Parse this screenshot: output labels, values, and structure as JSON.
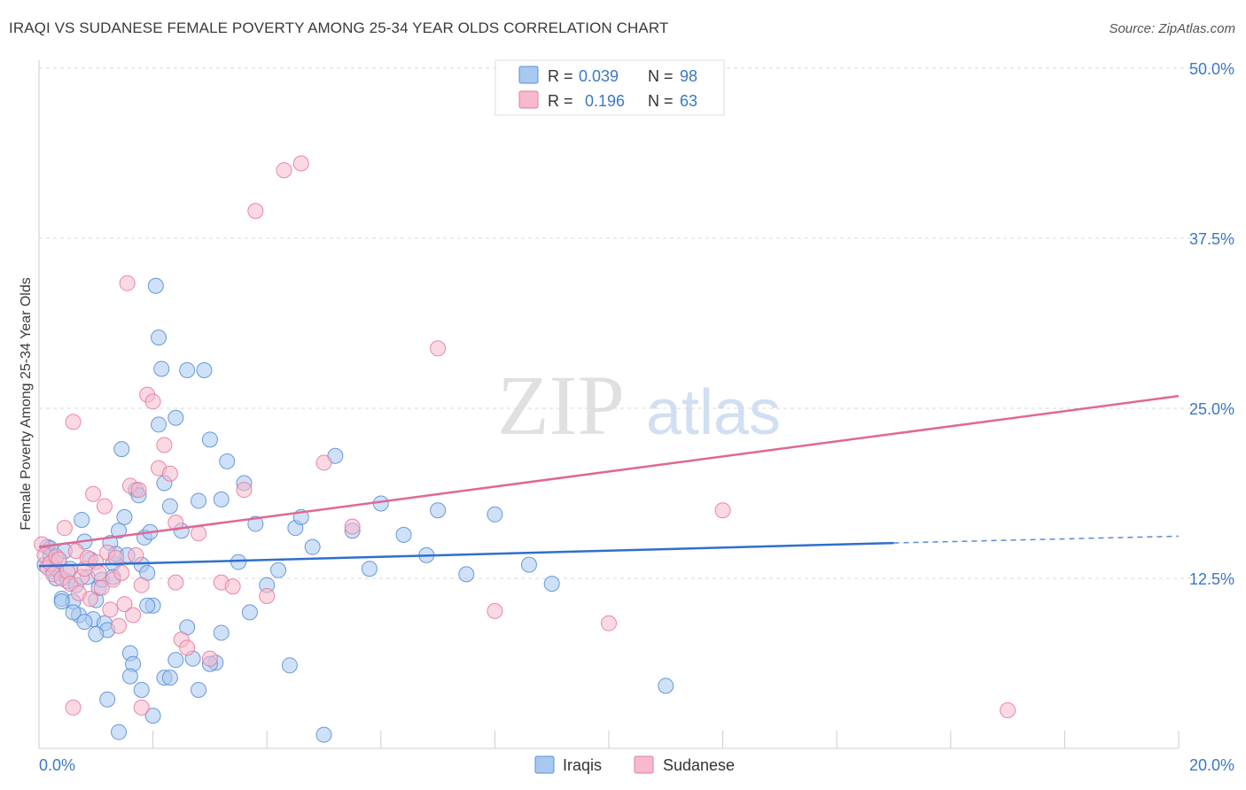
{
  "title": "IRAQI VS SUDANESE FEMALE POVERTY AMONG 25-34 YEAR OLDS CORRELATION CHART",
  "source": "Source: ZipAtlas.com",
  "watermark": {
    "zip": "ZIP",
    "atlas": "atlas"
  },
  "colors": {
    "iraqis_fill": "#a8c8f0",
    "iraqis_stroke": "#5a8fd8",
    "iraqis_line": "#2f6fcc",
    "sudanese_fill": "#f8b9cc",
    "sudanese_stroke": "#e87a9e",
    "sudanese_line": "#e06890",
    "axis_label": "#3a78c8",
    "grid": "#d8d8d8"
  },
  "legend": {
    "rows": [
      {
        "r_label": "R =",
        "r_value": "0.039",
        "n_label": "N =",
        "n_value": "98"
      },
      {
        "r_label": "R =",
        "r_value": "0.196",
        "n_label": "N =",
        "n_value": "63"
      }
    ]
  },
  "bottom_legend": [
    {
      "label": "Iraqis"
    },
    {
      "label": "Sudanese"
    }
  ],
  "chart_data": {
    "type": "scatter",
    "title": "IRAQI VS SUDANESE FEMALE POVERTY AMONG 25-34 YEAR OLDS CORRELATION CHART",
    "xlabel": "",
    "ylabel": "Female Poverty Among 25-34 Year Olds",
    "xlim": [
      0,
      20
    ],
    "ylim": [
      0,
      50
    ],
    "x_tick_labels": [
      "0.0%",
      "20.0%"
    ],
    "y_ticks": [
      12.5,
      25.0,
      37.5,
      50.0
    ],
    "y_tick_labels": [
      "12.5%",
      "25.0%",
      "37.5%",
      "50.0%"
    ],
    "grid": true,
    "legend_position": "top-center",
    "series": [
      {
        "name": "Iraqis",
        "r": 0.039,
        "n": 98,
        "trend": {
          "x_solid": [
            0,
            15
          ],
          "y_solid": [
            13.4,
            15.1
          ],
          "x_dashed": [
            15,
            20
          ],
          "y_dashed": [
            15.1,
            15.6
          ]
        },
        "x": [
          0.1,
          0.15,
          0.2,
          0.25,
          0.3,
          0.35,
          0.4,
          0.45,
          0.5,
          0.55,
          0.6,
          0.65,
          0.7,
          0.75,
          0.8,
          0.85,
          0.9,
          0.95,
          1.0,
          1.05,
          1.1,
          1.15,
          1.2,
          1.25,
          1.3,
          1.35,
          1.4,
          1.45,
          1.5,
          1.55,
          1.6,
          1.65,
          1.7,
          1.75,
          1.8,
          1.85,
          1.9,
          1.95,
          2.0,
          2.05,
          2.1,
          2.15,
          2.2,
          2.3,
          2.4,
          2.5,
          2.6,
          2.7,
          2.8,
          2.9,
          3.0,
          3.1,
          3.2,
          3.3,
          3.5,
          3.6,
          3.7,
          3.8,
          4.0,
          4.2,
          4.4,
          4.5,
          4.6,
          4.8,
          5.0,
          5.2,
          5.5,
          5.8,
          6.0,
          6.4,
          6.8,
          7.0,
          7.5,
          8.0,
          8.6,
          9.0,
          0.2,
          0.3,
          0.4,
          0.6,
          0.8,
          1.0,
          1.2,
          1.4,
          1.6,
          1.8,
          2.0,
          2.2,
          2.4,
          2.6,
          2.8,
          3.0,
          3.2,
          1.3,
          1.9,
          2.1,
          2.3,
          11.0
        ],
        "y": [
          13.5,
          14.8,
          14.2,
          13.0,
          12.5,
          13.8,
          11.0,
          14.5,
          12.3,
          13.2,
          10.8,
          12.0,
          9.8,
          16.8,
          15.2,
          12.6,
          13.9,
          9.5,
          10.9,
          11.8,
          12.4,
          9.2,
          8.7,
          15.1,
          13.6,
          14.3,
          16.0,
          22.0,
          17.0,
          14.2,
          7.0,
          6.2,
          19.0,
          18.6,
          13.5,
          15.5,
          12.9,
          15.9,
          10.5,
          34.0,
          30.2,
          27.9,
          19.5,
          17.8,
          24.3,
          16.0,
          8.9,
          6.6,
          18.2,
          27.8,
          22.7,
          6.3,
          18.3,
          21.1,
          13.7,
          19.5,
          10.0,
          16.5,
          12.0,
          13.1,
          6.1,
          16.2,
          17.0,
          14.8,
          1.0,
          21.5,
          16.0,
          13.2,
          18.0,
          15.7,
          14.2,
          17.5,
          12.8,
          17.2,
          13.5,
          12.1,
          14.7,
          13.2,
          10.8,
          10.0,
          9.3,
          8.4,
          3.6,
          1.2,
          5.3,
          4.3,
          2.4,
          5.2,
          6.5,
          27.8,
          4.3,
          6.2,
          8.5,
          12.6,
          10.5,
          23.8,
          5.2,
          4.6
        ]
      },
      {
        "name": "Sudanese",
        "r": 0.196,
        "n": 63,
        "trend": {
          "x_solid": [
            0,
            20
          ],
          "y_solid": [
            14.8,
            25.9
          ]
        },
        "x": [
          0.05,
          0.1,
          0.15,
          0.2,
          0.25,
          0.3,
          0.35,
          0.4,
          0.45,
          0.5,
          0.55,
          0.6,
          0.65,
          0.7,
          0.75,
          0.8,
          0.85,
          0.9,
          0.95,
          1.0,
          1.05,
          1.1,
          1.15,
          1.2,
          1.25,
          1.3,
          1.35,
          1.4,
          1.45,
          1.5,
          1.55,
          1.6,
          1.65,
          1.7,
          1.75,
          1.8,
          1.9,
          2.0,
          2.1,
          2.2,
          2.3,
          2.4,
          2.5,
          2.6,
          2.8,
          3.0,
          3.2,
          3.4,
          3.6,
          3.8,
          4.0,
          4.3,
          4.6,
          5.0,
          5.5,
          7.0,
          8.0,
          10.0,
          12.0,
          17.0,
          0.6,
          1.8,
          2.4
        ],
        "y": [
          15.0,
          14.2,
          13.3,
          13.6,
          12.8,
          14.1,
          13.9,
          12.5,
          16.2,
          13.0,
          12.1,
          24.0,
          14.5,
          11.4,
          12.6,
          13.2,
          14.0,
          11.0,
          18.7,
          13.7,
          12.9,
          11.8,
          17.8,
          14.4,
          10.2,
          12.4,
          14.0,
          9.0,
          12.9,
          10.6,
          34.2,
          19.3,
          9.8,
          14.2,
          19.0,
          12.0,
          26.0,
          25.5,
          20.6,
          22.3,
          20.2,
          12.2,
          8.0,
          7.4,
          15.8,
          6.6,
          12.2,
          11.9,
          19.0,
          39.5,
          11.2,
          42.5,
          43.0,
          21.0,
          16.3,
          29.4,
          10.1,
          9.2,
          17.5,
          2.8,
          3.0,
          3.0,
          16.6
        ]
      }
    ]
  }
}
